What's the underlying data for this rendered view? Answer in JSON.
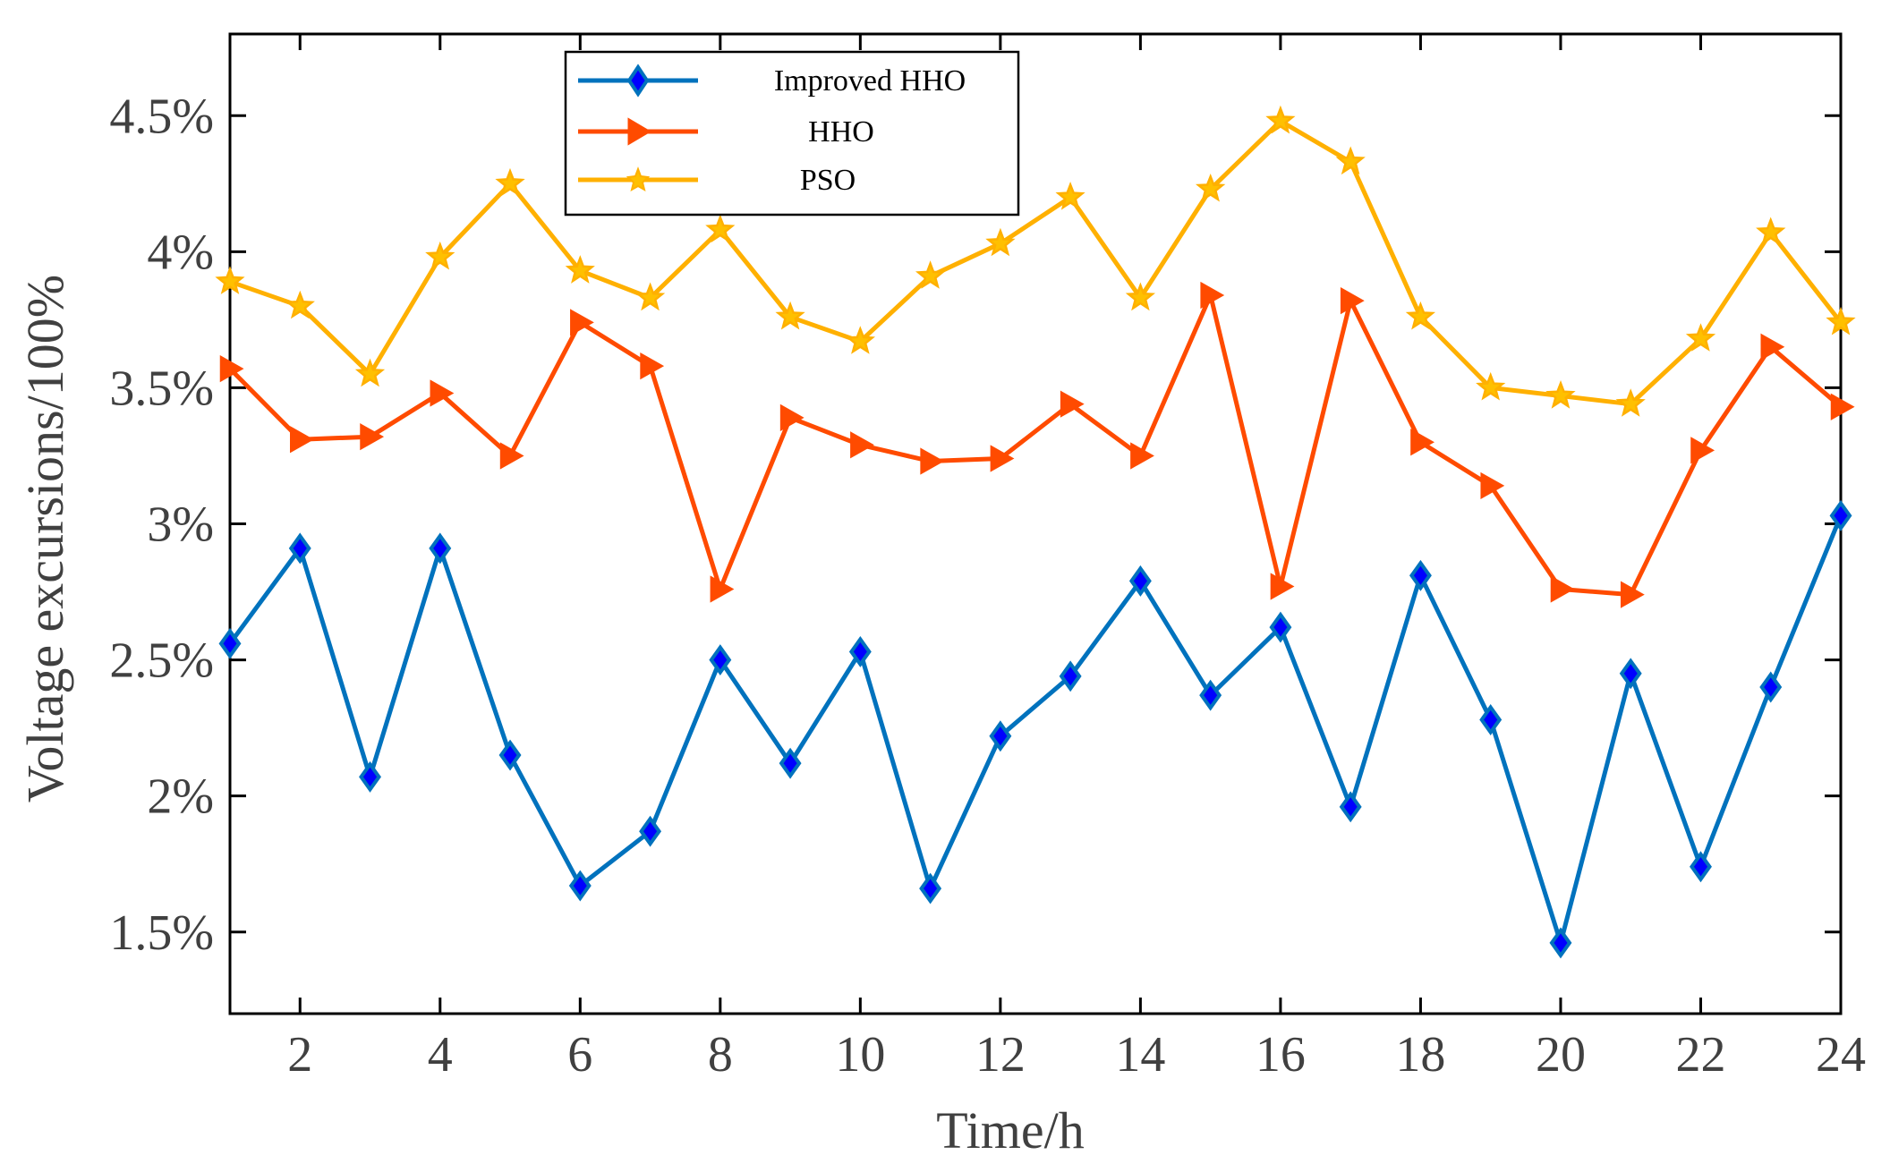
{
  "chart_data": {
    "type": "line",
    "title": "",
    "xlabel": "Time/h",
    "ylabel": "Voltage excursions/100%",
    "xlim": [
      1,
      24
    ],
    "ylim": [
      1.2,
      4.8
    ],
    "x": [
      1,
      2,
      3,
      4,
      5,
      6,
      7,
      8,
      9,
      10,
      11,
      12,
      13,
      14,
      15,
      16,
      17,
      18,
      19,
      20,
      21,
      22,
      23,
      24
    ],
    "xticks": [
      2,
      4,
      6,
      8,
      10,
      12,
      14,
      16,
      18,
      20,
      22,
      24
    ],
    "xtick_labels": [
      "2",
      "4",
      "6",
      "8",
      "10",
      "12",
      "14",
      "16",
      "18",
      "20",
      "22",
      "24"
    ],
    "yticks": [
      1.5,
      2,
      2.5,
      3,
      3.5,
      4,
      4.5
    ],
    "ytick_labels": [
      "1.5%",
      "2%",
      "2.5%",
      "3%",
      "3.5%",
      "4%",
      "4.5%"
    ],
    "grid": false,
    "legend_position": "top-center",
    "series": [
      {
        "name": "Improved HHO",
        "color": "#0072BD",
        "marker": "diamond",
        "marker_fill": "#0000FF",
        "values": [
          2.56,
          2.91,
          2.07,
          2.91,
          2.15,
          1.67,
          1.87,
          2.5,
          2.12,
          2.53,
          1.66,
          2.22,
          2.44,
          2.79,
          2.37,
          2.62,
          1.96,
          2.81,
          2.28,
          1.46,
          2.45,
          1.74,
          2.4,
          3.03
        ]
      },
      {
        "name": "HHO",
        "color": "#FF4B00",
        "marker": "triangle-right",
        "marker_fill": "#FF4B00",
        "values": [
          3.57,
          3.31,
          3.32,
          3.48,
          3.25,
          3.74,
          3.58,
          2.76,
          3.39,
          3.29,
          3.23,
          3.24,
          3.44,
          3.25,
          3.84,
          2.77,
          3.82,
          3.3,
          3.14,
          2.76,
          2.74,
          3.27,
          3.65,
          3.43
        ]
      },
      {
        "name": "PSO",
        "color": "#FFB000",
        "marker": "star",
        "marker_fill": "#FFC000",
        "values": [
          3.89,
          3.8,
          3.55,
          3.98,
          4.25,
          3.93,
          3.83,
          4.08,
          3.76,
          3.67,
          3.91,
          4.03,
          4.2,
          3.83,
          4.23,
          4.48,
          4.33,
          3.76,
          3.5,
          3.47,
          3.44,
          3.68,
          4.07,
          3.74
        ]
      }
    ]
  }
}
